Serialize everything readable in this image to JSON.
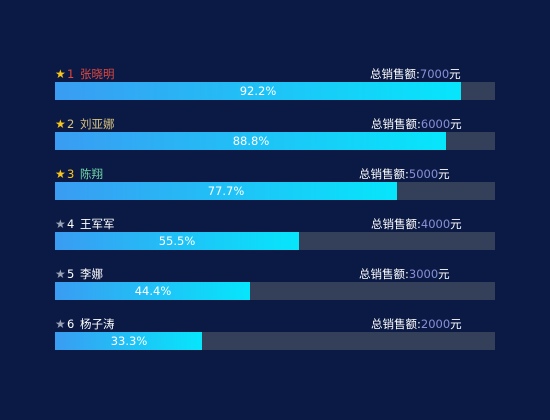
{
  "chart_data": {
    "type": "bar",
    "orientation": "horizontal",
    "sales_label": "总销售额:",
    "unit": "元",
    "items": [
      {
        "rank": "1",
        "name": "张晓明",
        "sales": "7000",
        "percent_label": "92.2%",
        "percent": 92.2,
        "star_color": "#f7c51e",
        "name_color": "#e0473f",
        "rank_color": "#e0473f"
      },
      {
        "rank": "2",
        "name": "刘亚娜",
        "sales": "6000",
        "percent_label": "88.8%",
        "percent": 88.8,
        "star_color": "#f7c51e",
        "name_color": "#d8c27e",
        "rank_color": "#d8c27e"
      },
      {
        "rank": "3",
        "name": "陈翔",
        "sales": "5000",
        "percent_label": "77.7%",
        "percent": 77.7,
        "star_color": "#f7c51e",
        "name_color": "#6fd6a8",
        "rank_color": "#f7c51e"
      },
      {
        "rank": "4",
        "name": "王军军",
        "sales": "4000",
        "percent_label": "55.5%",
        "percent": 55.5,
        "star_color": "#9aa3b5",
        "name_color": "#ffffff",
        "rank_color": "#ffffff"
      },
      {
        "rank": "5",
        "name": "李娜",
        "sales": "3000",
        "percent_label": "44.4%",
        "percent": 44.4,
        "star_color": "#9aa3b5",
        "name_color": "#ffffff",
        "rank_color": "#ffffff"
      },
      {
        "rank": "6",
        "name": "杨子涛",
        "sales": "2000",
        "percent_label": "33.3%",
        "percent": 33.3,
        "star_color": "#9aa3b5",
        "name_color": "#ffffff",
        "rank_color": "#ffffff"
      }
    ],
    "xlim": [
      0,
      100
    ],
    "bar_gradient": [
      "#3a9cf2",
      "#06e6fb"
    ],
    "track_color": "#34405a",
    "amount_color": "#8a8fd6",
    "background": "#0b1a45",
    "grid": false,
    "legend": "none"
  }
}
